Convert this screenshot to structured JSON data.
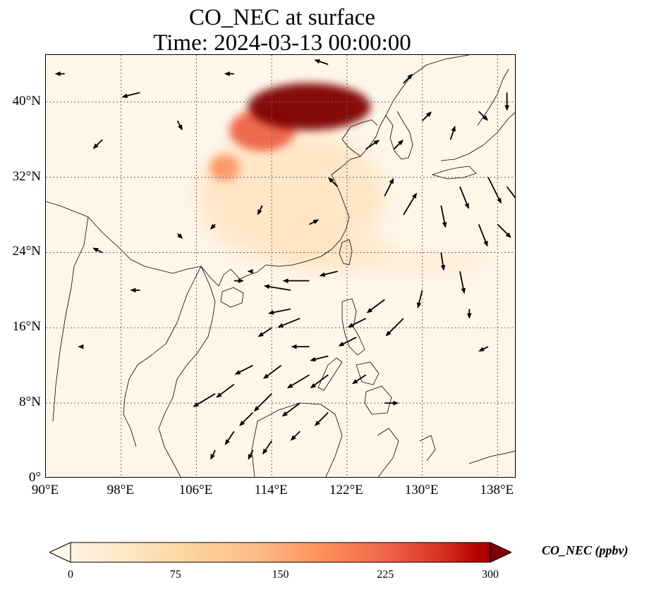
{
  "title": {
    "line1": "CO_NEC at surface",
    "line2": "Time: 2024-03-13 00:00:00"
  },
  "map": {
    "type": "filled-contour-with-wind-vectors",
    "variable": "CO_NEC",
    "extent": {
      "lon_min": 90,
      "lon_max": 140,
      "lat_min": 0,
      "lat_max": 45
    },
    "colormap": "OrRd",
    "gridlines": "dotted",
    "lat_ticks": [
      {
        "value": 0,
        "label": "0°"
      },
      {
        "value": 8,
        "label": "8°N"
      },
      {
        "value": 16,
        "label": "16°N"
      },
      {
        "value": 24,
        "label": "24°N"
      },
      {
        "value": 32,
        "label": "32°N"
      },
      {
        "value": 40,
        "label": "40°N"
      }
    ],
    "lon_ticks": [
      {
        "value": 90,
        "label": "90°E"
      },
      {
        "value": 98,
        "label": "98°E"
      },
      {
        "value": 106,
        "label": "106°E"
      },
      {
        "value": 114,
        "label": "114°E"
      },
      {
        "value": 122,
        "label": "122°E"
      },
      {
        "value": 130,
        "label": "130°E"
      },
      {
        "value": 138,
        "label": "138°E"
      }
    ],
    "plumes": [
      {
        "name": "north-china-core",
        "lon": 118,
        "lat": 39.5,
        "rlon": 6.5,
        "rlat": 2.5,
        "value": 300
      },
      {
        "name": "north-china-west",
        "lon": 113,
        "lat": 37,
        "rlon": 3.5,
        "rlat": 2.2,
        "value": 220
      },
      {
        "name": "north-china-tail",
        "lon": 109,
        "lat": 33,
        "rlon": 1.6,
        "rlat": 1.4,
        "value": 170
      },
      {
        "name": "east-china-haze",
        "lon": 116,
        "lat": 30,
        "rlon": 10,
        "rlat": 7,
        "value": 60
      },
      {
        "name": "south-china-haze",
        "lon": 121,
        "lat": 24,
        "rlon": 6,
        "rlat": 2,
        "value": 55
      },
      {
        "name": "pacific-band",
        "lon": 131,
        "lat": 23,
        "rlon": 6,
        "rlat": 1,
        "value": 45
      }
    ]
  },
  "wind_vectors": [
    {
      "lon": 92,
      "lat": 43,
      "u": -1,
      "v": 0
    },
    {
      "lon": 100,
      "lat": 41,
      "u": -2,
      "v": -0.5
    },
    {
      "lon": 110,
      "lat": 43,
      "u": -1,
      "v": 0
    },
    {
      "lon": 96,
      "lat": 36,
      "u": -1,
      "v": -1
    },
    {
      "lon": 104,
      "lat": 38,
      "u": 0.5,
      "v": -1
    },
    {
      "lon": 120,
      "lat": 44,
      "u": -1.5,
      "v": 0.5
    },
    {
      "lon": 126,
      "lat": 30,
      "u": 1,
      "v": 2
    },
    {
      "lon": 128,
      "lat": 28,
      "u": 1.5,
      "v": 2.5
    },
    {
      "lon": 132,
      "lat": 29,
      "u": 0.5,
      "v": -2.5
    },
    {
      "lon": 134,
      "lat": 31,
      "u": 1,
      "v": -2.5
    },
    {
      "lon": 137,
      "lat": 32,
      "u": 1.5,
      "v": -3
    },
    {
      "lon": 139,
      "lat": 31,
      "u": 1.5,
      "v": -2
    },
    {
      "lon": 136,
      "lat": 27,
      "u": 1,
      "v": -2.5
    },
    {
      "lon": 138,
      "lat": 27,
      "u": 1.5,
      "v": -1.5
    },
    {
      "lon": 132,
      "lat": 24,
      "u": 0.3,
      "v": -2
    },
    {
      "lon": 134,
      "lat": 22,
      "u": 0.5,
      "v": -2.5
    },
    {
      "lon": 130,
      "lat": 20,
      "u": -0.5,
      "v": -2
    },
    {
      "lon": 128,
      "lat": 17,
      "u": -2,
      "v": -2
    },
    {
      "lon": 126,
      "lat": 19,
      "u": -2,
      "v": -1.5
    },
    {
      "lon": 124,
      "lat": 17,
      "u": -2,
      "v": -1
    },
    {
      "lon": 121,
      "lat": 22,
      "u": -2,
      "v": -0.5
    },
    {
      "lon": 118,
      "lat": 21,
      "u": -3,
      "v": 0
    },
    {
      "lon": 116,
      "lat": 20,
      "u": -3,
      "v": 0.5
    },
    {
      "lon": 116,
      "lat": 18,
      "u": -2.5,
      "v": -0.5
    },
    {
      "lon": 117,
      "lat": 17,
      "u": -2.5,
      "v": -1
    },
    {
      "lon": 114,
      "lat": 16,
      "u": -1.5,
      "v": -1
    },
    {
      "lon": 118,
      "lat": 14,
      "u": -2,
      "v": 0
    },
    {
      "lon": 120,
      "lat": 13,
      "u": -2,
      "v": -0.5
    },
    {
      "lon": 123,
      "lat": 15,
      "u": -2,
      "v": -1
    },
    {
      "lon": 120,
      "lat": 11,
      "u": -2,
      "v": -1.5
    },
    {
      "lon": 118,
      "lat": 11,
      "u": -2.5,
      "v": -1.5
    },
    {
      "lon": 115,
      "lat": 12,
      "u": -2,
      "v": -1.5
    },
    {
      "lon": 112,
      "lat": 12,
      "u": -2,
      "v": -1
    },
    {
      "lon": 110,
      "lat": 10,
      "u": -2,
      "v": -1.5
    },
    {
      "lon": 108,
      "lat": 9,
      "u": -2.5,
      "v": -1.5
    },
    {
      "lon": 114,
      "lat": 9,
      "u": -2,
      "v": -2
    },
    {
      "lon": 117,
      "lat": 8,
      "u": -2,
      "v": -1.5
    },
    {
      "lon": 120,
      "lat": 7,
      "u": -1.5,
      "v": -1.5
    },
    {
      "lon": 112,
      "lat": 7,
      "u": -1.5,
      "v": -1.5
    },
    {
      "lon": 110,
      "lat": 5,
      "u": -1,
      "v": -1.5
    },
    {
      "lon": 114,
      "lat": 4,
      "u": -1,
      "v": -1.5
    },
    {
      "lon": 117,
      "lat": 5,
      "u": -1,
      "v": -1
    },
    {
      "lon": 112,
      "lat": 3,
      "u": -0.5,
      "v": -1
    },
    {
      "lon": 108,
      "lat": 3,
      "u": -0.5,
      "v": -1
    },
    {
      "lon": 124,
      "lat": 11,
      "u": -1.5,
      "v": -1
    },
    {
      "lon": 126,
      "lat": 8,
      "u": 1.5,
      "v": 0
    },
    {
      "lon": 104,
      "lat": 26,
      "u": 0.5,
      "v": -0.5
    },
    {
      "lon": 108,
      "lat": 27,
      "u": -0.5,
      "v": -0.5
    },
    {
      "lon": 110,
      "lat": 21,
      "u": 1,
      "v": 0
    },
    {
      "lon": 112,
      "lat": 22,
      "u": -0.5,
      "v": 0
    },
    {
      "lon": 100,
      "lat": 20,
      "u": -1,
      "v": 0
    },
    {
      "lon": 96,
      "lat": 24,
      "u": -1,
      "v": 0.5
    },
    {
      "lon": 94,
      "lat": 14,
      "u": -0.5,
      "v": 0
    },
    {
      "lon": 135,
      "lat": 18,
      "u": 0,
      "v": -1
    },
    {
      "lon": 137,
      "lat": 14,
      "u": -1,
      "v": -0.5
    },
    {
      "lon": 113,
      "lat": 29,
      "u": -0.5,
      "v": -1
    },
    {
      "lon": 118,
      "lat": 27,
      "u": 1,
      "v": 0.5
    },
    {
      "lon": 121,
      "lat": 31,
      "u": -1,
      "v": 1
    },
    {
      "lon": 124,
      "lat": 35,
      "u": 1.5,
      "v": 1
    },
    {
      "lon": 127,
      "lat": 35,
      "u": 1,
      "v": 1
    },
    {
      "lon": 130,
      "lat": 38,
      "u": 1,
      "v": 1
    },
    {
      "lon": 133,
      "lat": 36,
      "u": 0.5,
      "v": 1.5
    },
    {
      "lon": 136,
      "lat": 39,
      "u": 1,
      "v": -1
    },
    {
      "lon": 139,
      "lat": 41,
      "u": 0,
      "v": -2
    },
    {
      "lon": 128,
      "lat": 42,
      "u": 1,
      "v": 1
    }
  ],
  "colorbar": {
    "label": "CO_NEC (ppbv)",
    "min": 0,
    "max": 300,
    "extend": "both",
    "ticks": [
      "0",
      "75",
      "150",
      "225",
      "300"
    ]
  }
}
